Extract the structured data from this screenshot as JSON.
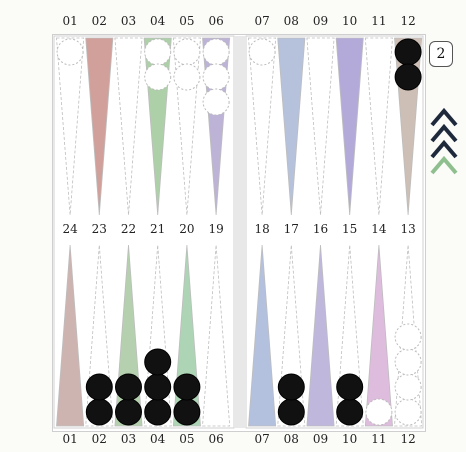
{
  "top_labels": [
    "01",
    "02",
    "03",
    "04",
    "05",
    "06",
    "07",
    "08",
    "09",
    "10",
    "11",
    "12"
  ],
  "middle_top_labels": [
    "24",
    "23",
    "22",
    "21",
    "20",
    "19",
    "18",
    "17",
    "16",
    "15",
    "14",
    "13"
  ],
  "bottom_labels": [
    "01",
    "02",
    "03",
    "04",
    "05",
    "06",
    "07",
    "08",
    "09",
    "10",
    "11",
    "12"
  ],
  "doubling_cube": "2",
  "colors": {
    "checker_white": "#ffffff",
    "checker_black": "#111111",
    "arrow_dark": "#1e2a3c",
    "arrow_light": "#8fbf8f"
  },
  "top_points": [
    {
      "fill": "none",
      "checkers": {
        "color": "white",
        "count": 1
      }
    },
    {
      "fill": "#c98f8a",
      "checkers": null
    },
    {
      "fill": "none",
      "checkers": null
    },
    {
      "fill": "#9fc89a",
      "checkers": {
        "color": "white",
        "count": 2
      }
    },
    {
      "fill": "none",
      "checkers": {
        "color": "white",
        "count": 2
      }
    },
    {
      "fill": "#b2a6cf",
      "checkers": {
        "color": "white",
        "count": 3
      }
    },
    {
      "fill": "none",
      "checkers": {
        "color": "white",
        "count": 1
      }
    },
    {
      "fill": "#a9b7d6",
      "checkers": null
    },
    {
      "fill": "none",
      "checkers": null
    },
    {
      "fill": "#a79bd3",
      "checkers": null
    },
    {
      "fill": "none",
      "checkers": null
    },
    {
      "fill": "#c4b4a8",
      "checkers": {
        "color": "black",
        "count": 2
      }
    }
  ],
  "bottom_points": [
    {
      "fill": "#c6a7a3",
      "checkers": null
    },
    {
      "fill": "none",
      "checkers": {
        "color": "black",
        "count": 2
      }
    },
    {
      "fill": "#a8c8a0",
      "checkers": {
        "color": "black",
        "count": 2
      }
    },
    {
      "fill": "none",
      "checkers": {
        "color": "black",
        "count": 3
      }
    },
    {
      "fill": "#9fcda8",
      "checkers": {
        "color": "black",
        "count": 2
      }
    },
    {
      "fill": "none",
      "checkers": null
    },
    {
      "fill": "#a6b6d8",
      "checkers": null
    },
    {
      "fill": "none",
      "checkers": {
        "color": "black",
        "count": 2
      }
    },
    {
      "fill": "#b4aad6",
      "checkers": null
    },
    {
      "fill": "none",
      "checkers": {
        "color": "black",
        "count": 2
      }
    },
    {
      "fill": "#d8b0d8",
      "checkers": {
        "color": "white",
        "count": 1
      }
    },
    {
      "fill": "none",
      "checkers": {
        "color": "white",
        "count": 4
      }
    }
  ],
  "direction_arrows": 4
}
